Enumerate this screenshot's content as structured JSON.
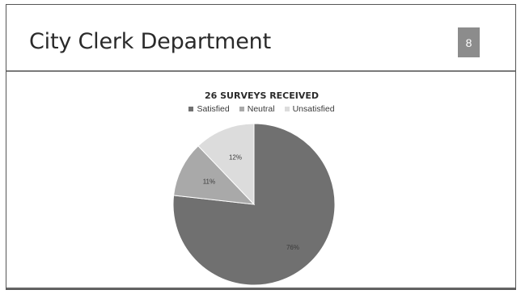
{
  "slide": {
    "title": "City Clerk Department",
    "page_number": "8"
  },
  "chart_data": {
    "type": "pie",
    "title": "26 SURVEYS RECEIVED",
    "categories": [
      "Satisfied",
      "Neutral",
      "Unsatisfied"
    ],
    "values": [
      76,
      11,
      12
    ],
    "labels": [
      "76%",
      "11%",
      "12%"
    ],
    "colors": [
      "#707070",
      "#a9a9a9",
      "#dcdcdc"
    ],
    "legend_position": "top"
  }
}
